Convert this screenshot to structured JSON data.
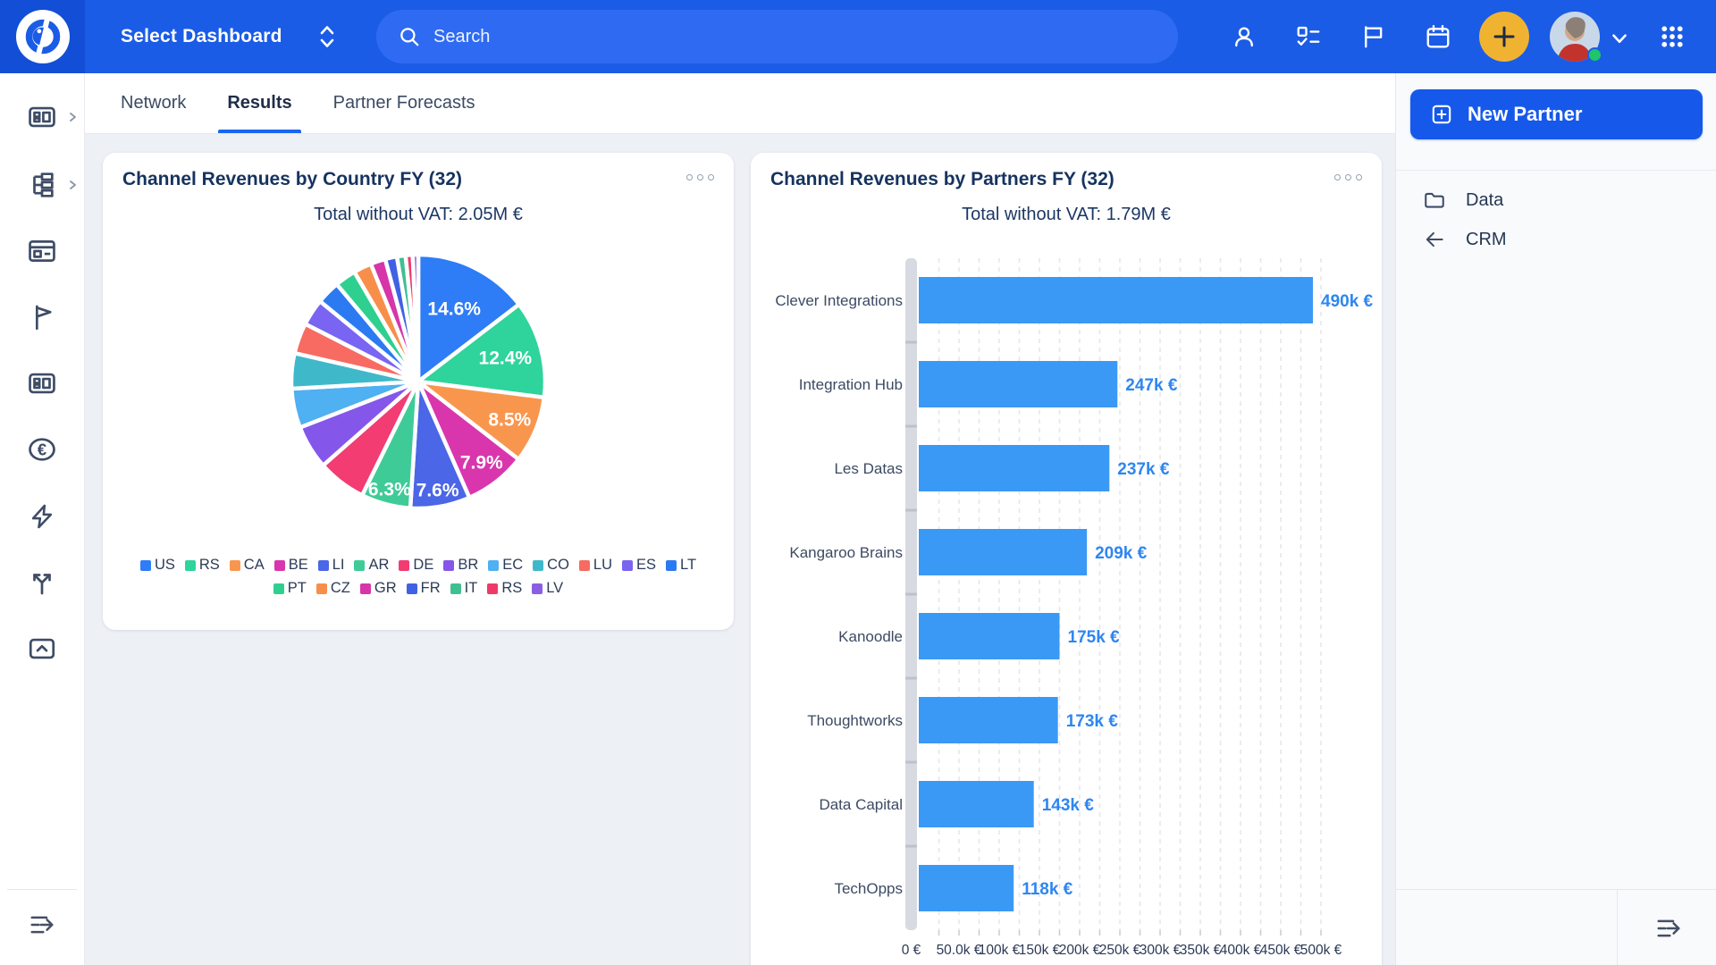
{
  "topbar": {
    "dashboard_selector": "Select Dashboard",
    "search_placeholder": "Search"
  },
  "tabs": [
    {
      "label": "Network",
      "active": false
    },
    {
      "label": "Results",
      "active": true
    },
    {
      "label": "Partner Forecasts",
      "active": false
    }
  ],
  "right_panel": {
    "new_partner_label": "New Partner",
    "items": [
      {
        "label": "Data",
        "icon": "folder-icon"
      },
      {
        "label": "CRM",
        "icon": "arrow-left-icon"
      }
    ]
  },
  "colors": {
    "topbar_blue": "#1b5ce6",
    "accent_blue": "#1a66f0",
    "amber_plus_button": "#f0b331",
    "card_title_navy": "#16335f"
  },
  "chart_data": [
    {
      "type": "pie",
      "title": "Channel Revenues by Country FY (32)",
      "subtitle": "Total without VAT: 2.05M €",
      "labels": [
        "US",
        "RS",
        "CA",
        "BE",
        "LI",
        "AR",
        "DE",
        "BR",
        "EC",
        "CO",
        "LU",
        "ES",
        "LT",
        "PT",
        "CZ",
        "GR",
        "FR",
        "IT",
        "RS",
        "LV"
      ],
      "values": [
        14.6,
        12.4,
        8.5,
        7.9,
        7.6,
        6.3,
        6.2,
        5.6,
        5.0,
        4.5,
        3.9,
        3.4,
        3.0,
        2.7,
        2.3,
        1.9,
        1.5,
        1.1,
        0.9,
        0.7
      ],
      "value_unit": "%",
      "labeled_slices": 6,
      "colors": [
        "#2e7cf6",
        "#2ed49c",
        "#f9964e",
        "#d936ae",
        "#4b66e6",
        "#3fcb97",
        "#f23c72",
        "#8457ea",
        "#4fb0f2",
        "#3fb9c9",
        "#f76b62",
        "#7a64f2",
        "#2b7af2",
        "#2fd08f",
        "#f78f4b",
        "#d636a8",
        "#3f62e4",
        "#3fc090",
        "#ef3a68",
        "#8a5fe4"
      ],
      "legend_position": "bottom"
    },
    {
      "type": "bar",
      "orientation": "horizontal",
      "title": "Channel Revenues by Partners FY (32)",
      "subtitle": "Total without VAT: 1.79M €",
      "categories": [
        "Clever Integrations",
        "Integration Hub",
        "Les Datas",
        "Kangaroo Brains",
        "Kanoodle",
        "Thoughtworks",
        "Data Capital",
        "TechOpps"
      ],
      "values_k_eur": [
        490,
        247,
        237,
        209,
        175,
        173,
        143,
        118
      ],
      "value_labels": [
        "490k €",
        "247k €",
        "237k €",
        "209k €",
        "175k €",
        "173k €",
        "143k €",
        "118k €"
      ],
      "xlim_k_eur": [
        0,
        500
      ],
      "x_tick_labels": [
        "0 €",
        "50.0k €",
        "100k €",
        "150k €",
        "200k €",
        "250k €",
        "300k €",
        "350k €",
        "400k €",
        "450k €",
        "500k €"
      ],
      "grid": "vertical-dashed",
      "bar_color": "#3b99f6",
      "value_label_color": "#2e86f0"
    }
  ]
}
